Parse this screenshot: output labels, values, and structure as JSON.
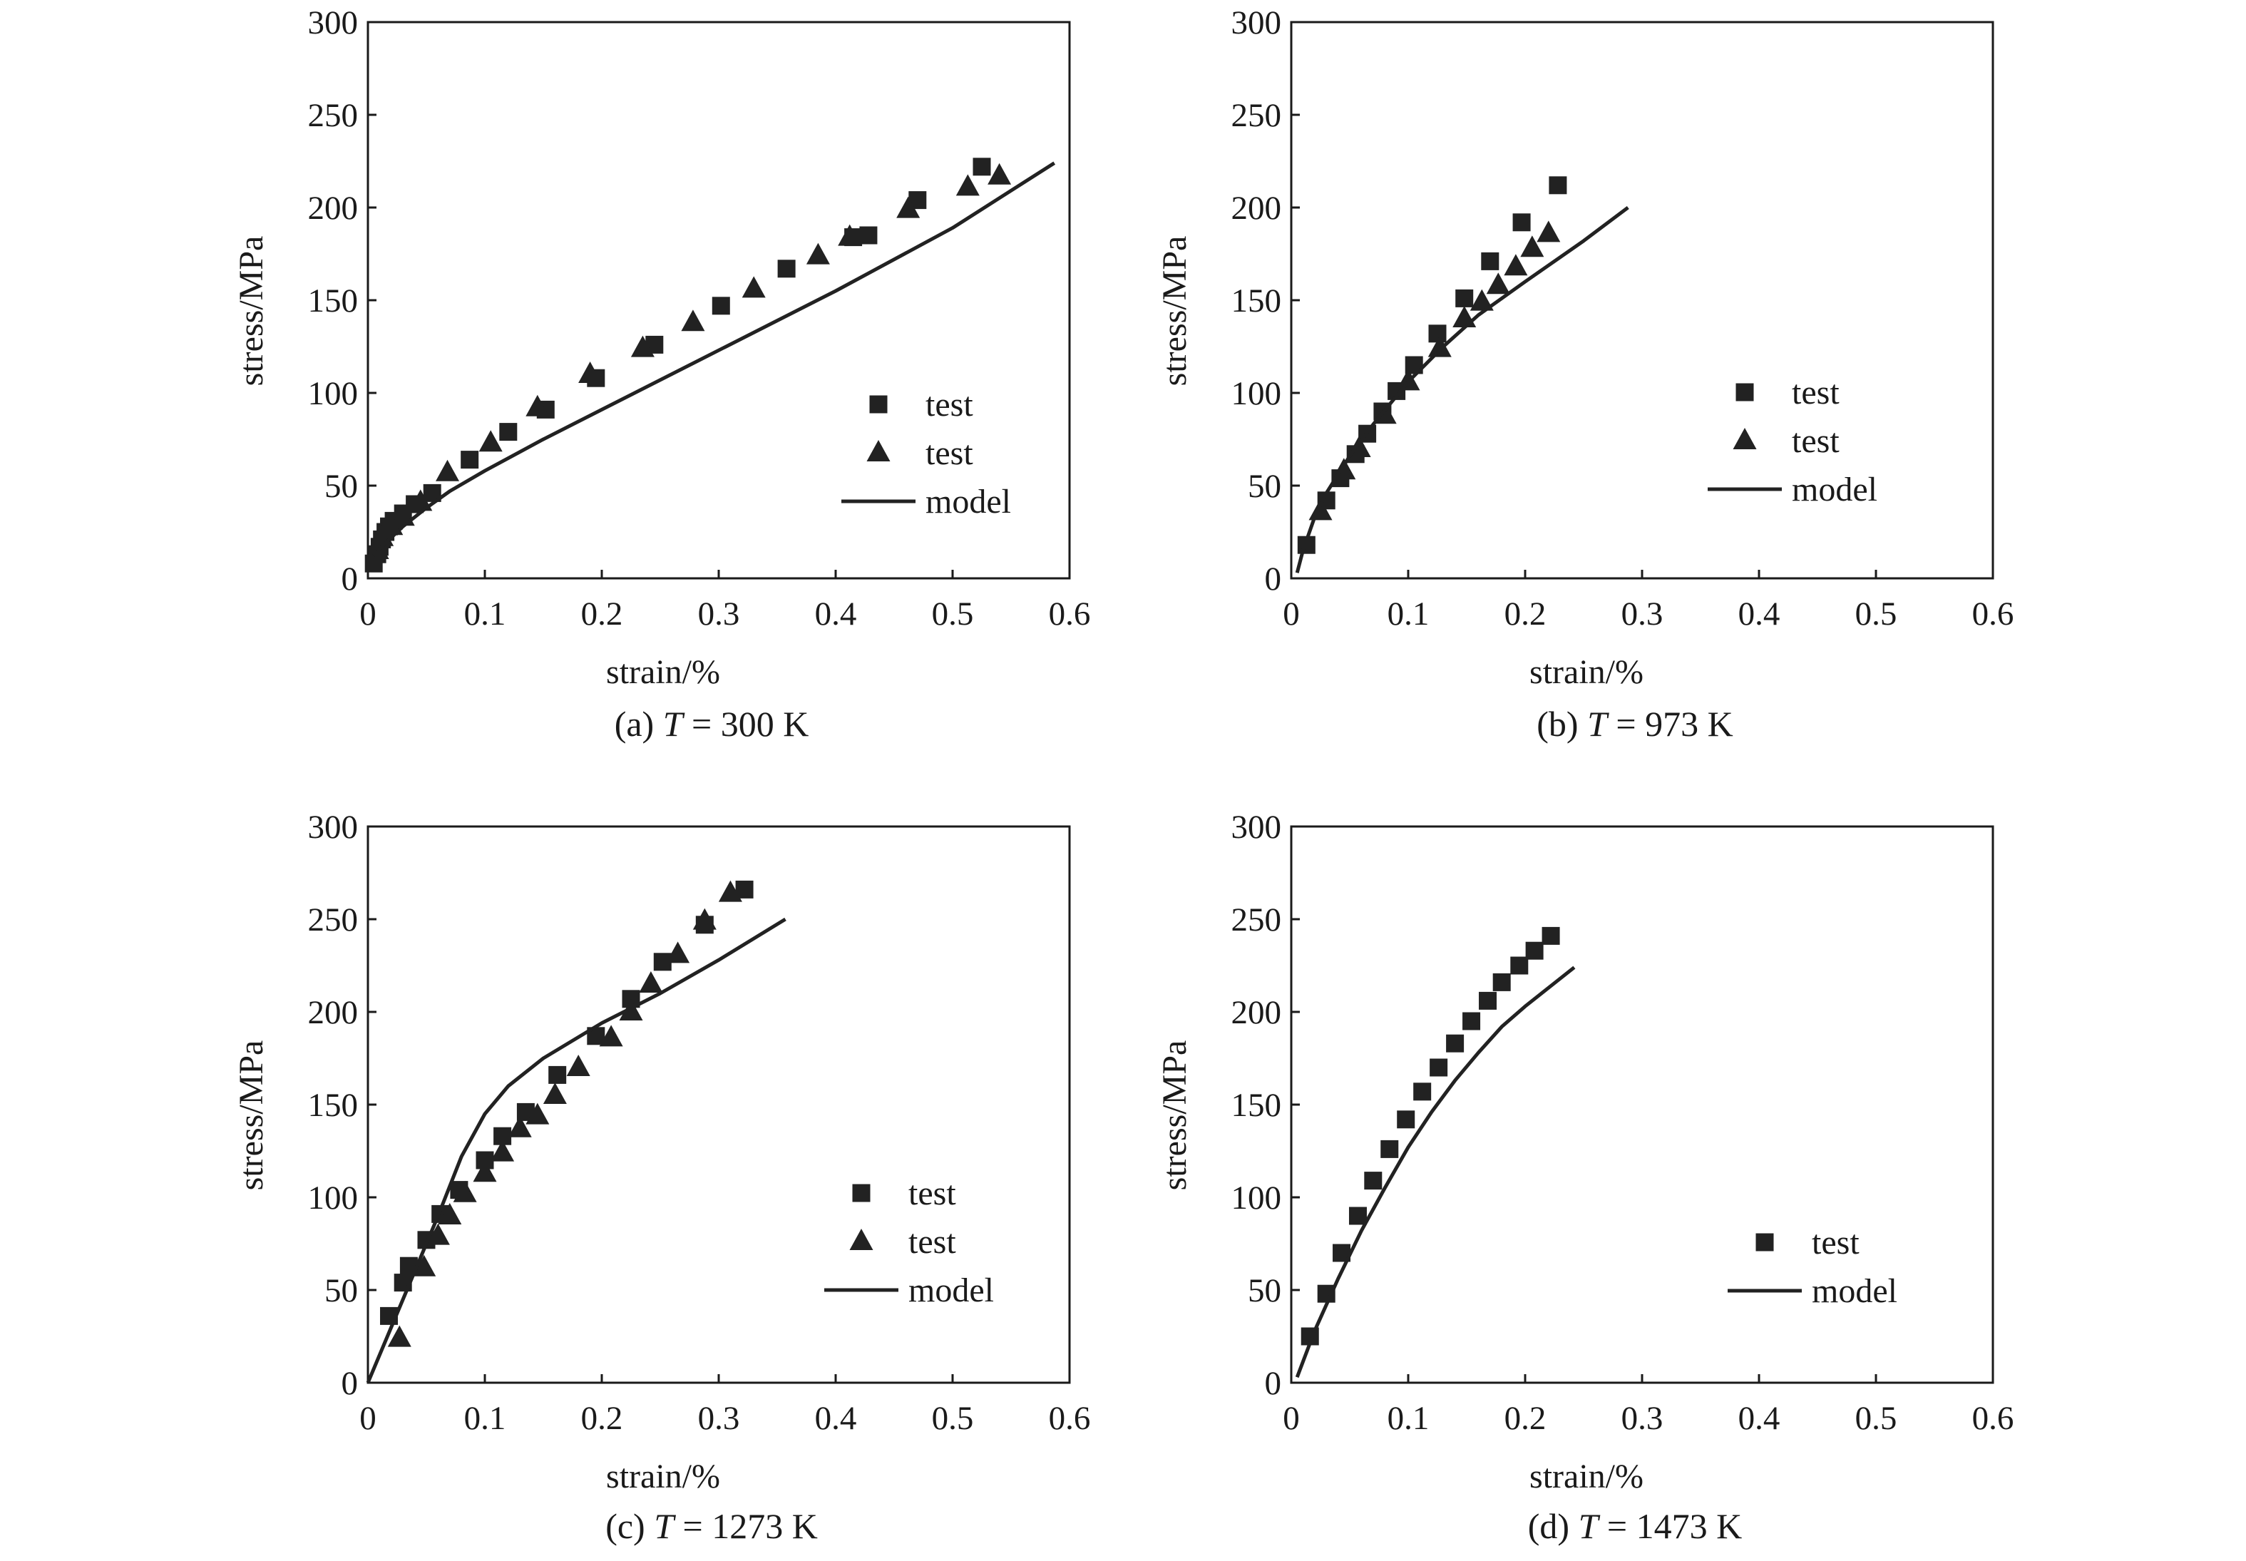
{
  "chart_data": [
    {
      "type": "scatter",
      "caption": {
        "prefix": "(a) ",
        "var": "T",
        "suffix": " = 300 K"
      },
      "xlabel": "strain/%",
      "ylabel": "stress/MPa",
      "xlim": [
        0,
        0.6
      ],
      "ylim": [
        0,
        300
      ],
      "xticks": [
        "0",
        "0.1",
        "0.2",
        "0.3",
        "0.4",
        "0.5",
        "0.6"
      ],
      "yticks": [
        "0",
        "50",
        "100",
        "150",
        "200",
        "250",
        "300"
      ],
      "grid": false,
      "legend_position": "center-right",
      "series": [
        {
          "name": "test",
          "marker": "square",
          "color": "#222222",
          "x": [
            0.005,
            0.008,
            0.01,
            0.012,
            0.015,
            0.018,
            0.022,
            0.03,
            0.04,
            0.055,
            0.087,
            0.12,
            0.152,
            0.195,
            0.245,
            0.302,
            0.358,
            0.415,
            0.428,
            0.47,
            0.525
          ],
          "y": [
            8,
            13,
            17,
            21,
            25,
            28,
            31,
            35,
            40,
            46,
            64,
            79,
            91,
            108,
            126,
            147,
            167,
            184,
            185,
            204,
            222
          ]
        },
        {
          "name": "test",
          "marker": "triangle",
          "color": "#222222",
          "x": [
            0.008,
            0.012,
            0.02,
            0.03,
            0.045,
            0.068,
            0.105,
            0.145,
            0.19,
            0.235,
            0.278,
            0.33,
            0.385,
            0.412,
            0.462,
            0.513,
            0.54
          ],
          "y": [
            15,
            22,
            28,
            33,
            41,
            57,
            73,
            92,
            110,
            124,
            138,
            156,
            174,
            184,
            199,
            211,
            217
          ]
        },
        {
          "name": "model",
          "marker": "line",
          "color": "#222222",
          "x": [
            0.005,
            0.01,
            0.02,
            0.03,
            0.04,
            0.05,
            0.07,
            0.1,
            0.15,
            0.2,
            0.3,
            0.4,
            0.5,
            0.587
          ],
          "y": [
            12,
            16,
            22,
            28,
            33,
            38,
            47,
            58,
            75,
            91,
            123,
            155,
            189,
            224
          ]
        }
      ]
    },
    {
      "type": "scatter",
      "caption": {
        "prefix": "(b) ",
        "var": "T",
        "suffix": " = 973 K"
      },
      "xlabel": "strain/%",
      "ylabel": "stress/MPa",
      "xlim": [
        0,
        0.6
      ],
      "ylim": [
        0,
        300
      ],
      "xticks": [
        "0",
        "0.1",
        "0.2",
        "0.3",
        "0.4",
        "0.5",
        "0.6"
      ],
      "yticks": [
        "0",
        "50",
        "100",
        "150",
        "200",
        "250",
        "300"
      ],
      "grid": false,
      "legend_position": "center-right",
      "series": [
        {
          "name": "test",
          "marker": "square",
          "color": "#222222",
          "x": [
            0.013,
            0.03,
            0.042,
            0.055,
            0.065,
            0.078,
            0.09,
            0.105,
            0.125,
            0.148,
            0.17,
            0.197,
            0.228
          ],
          "y": [
            18,
            42,
            54,
            67,
            78,
            90,
            101,
            115,
            132,
            151,
            171,
            192,
            212
          ]
        },
        {
          "name": "test",
          "marker": "triangle",
          "color": "#222222",
          "x": [
            0.025,
            0.045,
            0.058,
            0.08,
            0.1,
            0.127,
            0.148,
            0.163,
            0.177,
            0.192,
            0.206,
            0.22
          ],
          "y": [
            36,
            58,
            70,
            88,
            106,
            124,
            140,
            149,
            158,
            168,
            178,
            186
          ]
        },
        {
          "name": "model",
          "marker": "line",
          "color": "#222222",
          "x": [
            0.005,
            0.01,
            0.02,
            0.03,
            0.05,
            0.07,
            0.1,
            0.13,
            0.16,
            0.2,
            0.25,
            0.288
          ],
          "y": [
            3,
            15,
            33,
            46,
            66,
            83,
            106,
            125,
            142,
            160,
            182,
            200
          ]
        }
      ]
    },
    {
      "type": "scatter",
      "caption": {
        "prefix": "(c) ",
        "var": "T",
        "suffix": " = 1273 K"
      },
      "xlabel": "strain/%",
      "ylabel": "stress/MPa",
      "xlim": [
        0,
        0.6
      ],
      "ylim": [
        0,
        300
      ],
      "xticks": [
        "0",
        "0.1",
        "0.2",
        "0.3",
        "0.4",
        "0.5",
        "0.6"
      ],
      "yticks": [
        "0",
        "50",
        "100",
        "150",
        "200",
        "250",
        "300"
      ],
      "grid": false,
      "legend_position": "center-right",
      "series": [
        {
          "name": "test",
          "marker": "square",
          "color": "#222222",
          "x": [
            0.018,
            0.03,
            0.035,
            0.05,
            0.062,
            0.078,
            0.1,
            0.115,
            0.135,
            0.162,
            0.195,
            0.225,
            0.252,
            0.288,
            0.322
          ],
          "y": [
            36,
            54,
            63,
            77,
            91,
            104,
            120,
            133,
            146,
            166,
            187,
            207,
            227,
            247,
            266
          ]
        },
        {
          "name": "test",
          "marker": "triangle",
          "color": "#222222",
          "x": [
            0.027,
            0.048,
            0.06,
            0.07,
            0.083,
            0.1,
            0.115,
            0.13,
            0.145,
            0.16,
            0.18,
            0.208,
            0.225,
            0.242,
            0.265,
            0.288,
            0.31
          ],
          "y": [
            24,
            62,
            79,
            90,
            102,
            113,
            124,
            137,
            144,
            155,
            170,
            186,
            200,
            215,
            231,
            249,
            264
          ]
        },
        {
          "name": "model",
          "marker": "line",
          "color": "#222222",
          "x": [
            0,
            0.02,
            0.04,
            0.06,
            0.08,
            0.1,
            0.12,
            0.15,
            0.2,
            0.25,
            0.3,
            0.357
          ],
          "y": [
            0,
            30,
            60,
            90,
            122,
            145,
            160,
            175,
            194,
            210,
            228,
            250
          ]
        }
      ]
    },
    {
      "type": "scatter",
      "caption": {
        "prefix": "(d) ",
        "var": "T",
        "suffix": " = 1473 K"
      },
      "xlabel": "strain/%",
      "ylabel": "stress/MPa",
      "xlim": [
        0,
        0.6
      ],
      "ylim": [
        0,
        300
      ],
      "xticks": [
        "0",
        "0.1",
        "0.2",
        "0.3",
        "0.4",
        "0.5",
        "0.6"
      ],
      "yticks": [
        "0",
        "50",
        "100",
        "150",
        "200",
        "250",
        "300"
      ],
      "grid": false,
      "legend_position": "lower-right",
      "series": [
        {
          "name": "test",
          "marker": "square",
          "color": "#222222",
          "x": [
            0.016,
            0.03,
            0.043,
            0.057,
            0.07,
            0.084,
            0.098,
            0.112,
            0.126,
            0.14,
            0.154,
            0.168,
            0.18,
            0.195,
            0.208,
            0.222
          ],
          "y": [
            25,
            48,
            70,
            90,
            109,
            126,
            142,
            157,
            170,
            183,
            195,
            206,
            216,
            225,
            233,
            241
          ]
        },
        {
          "name": "model",
          "marker": "line",
          "color": "#222222",
          "x": [
            0.005,
            0.02,
            0.04,
            0.06,
            0.08,
            0.1,
            0.12,
            0.14,
            0.16,
            0.18,
            0.2,
            0.22,
            0.242
          ],
          "y": [
            3,
            28,
            56,
            82,
            105,
            127,
            146,
            163,
            178,
            192,
            203,
            213,
            224
          ]
        }
      ]
    }
  ]
}
